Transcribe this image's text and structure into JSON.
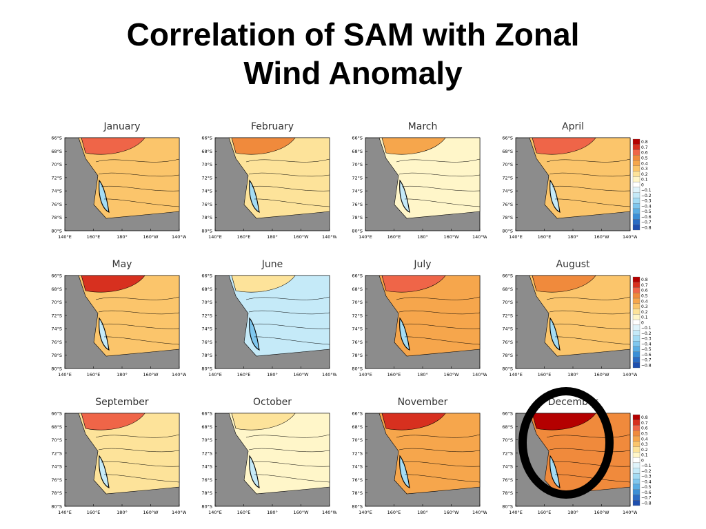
{
  "slide": {
    "title_line1": "Correlation of SAM with Zonal",
    "title_line2": "Wind Anomaly"
  },
  "axes": {
    "y_ticks": [
      "66°S",
      "68°S",
      "70°S",
      "72°S",
      "74°S",
      "76°S",
      "78°S",
      "80°S"
    ],
    "x_ticks": [
      "140°E",
      "160°E",
      "180°",
      "160°W",
      "140°W"
    ]
  },
  "legend": {
    "values": [
      "0.8",
      "0.7",
      "0.6",
      "0.5",
      "0.4",
      "0.3",
      "0.2",
      "0.1",
      "0",
      "−0.1",
      "−0.2",
      "−0.3",
      "−0.4",
      "−0.5",
      "−0.6",
      "−0.7",
      "−0.8"
    ],
    "colors": [
      "#b40000",
      "#d7301f",
      "#ef6548",
      "#f08a3c",
      "#f6a64c",
      "#fbc56b",
      "#fde39a",
      "#fff6c9",
      "#ffffff",
      "#e0f4fb",
      "#c5eaf8",
      "#a4dcf4",
      "#7fc7ee",
      "#5aaee4",
      "#3b8fd6",
      "#2a6cc4",
      "#1e4fae"
    ]
  },
  "panels": [
    {
      "month": "January",
      "show_legend": false,
      "base": "#fbc56b",
      "highlight": "#ef6548",
      "cool": "#a4dcf4"
    },
    {
      "month": "February",
      "show_legend": false,
      "base": "#fde39a",
      "highlight": "#f08a3c",
      "cool": "#a4dcf4"
    },
    {
      "month": "March",
      "show_legend": false,
      "base": "#fff6c9",
      "highlight": "#f6a64c",
      "cool": "#c5eaf8"
    },
    {
      "month": "April",
      "show_legend": true,
      "base": "#fbc56b",
      "highlight": "#ef6548",
      "cool": "#c5eaf8"
    },
    {
      "month": "May",
      "show_legend": false,
      "base": "#fbc56b",
      "highlight": "#d7301f",
      "cool": "#c5eaf8"
    },
    {
      "month": "June",
      "show_legend": false,
      "base": "#c5eaf8",
      "highlight": "#fde39a",
      "cool": "#7fc7ee"
    },
    {
      "month": "July",
      "show_legend": false,
      "base": "#f6a64c",
      "highlight": "#ef6548",
      "cool": "#a4dcf4"
    },
    {
      "month": "August",
      "show_legend": true,
      "base": "#fbc56b",
      "highlight": "#f08a3c",
      "cool": "#a4dcf4"
    },
    {
      "month": "September",
      "show_legend": false,
      "base": "#fde39a",
      "highlight": "#ef6548",
      "cool": "#c5eaf8"
    },
    {
      "month": "October",
      "show_legend": false,
      "base": "#fff6c9",
      "highlight": "#fde39a",
      "cool": "#c5eaf8"
    },
    {
      "month": "November",
      "show_legend": false,
      "base": "#f6a64c",
      "highlight": "#d7301f",
      "cool": "#a4dcf4"
    },
    {
      "month": "December",
      "show_legend": true,
      "base": "#f08a3c",
      "highlight": "#b40000",
      "cool": "#a4dcf4"
    }
  ]
}
